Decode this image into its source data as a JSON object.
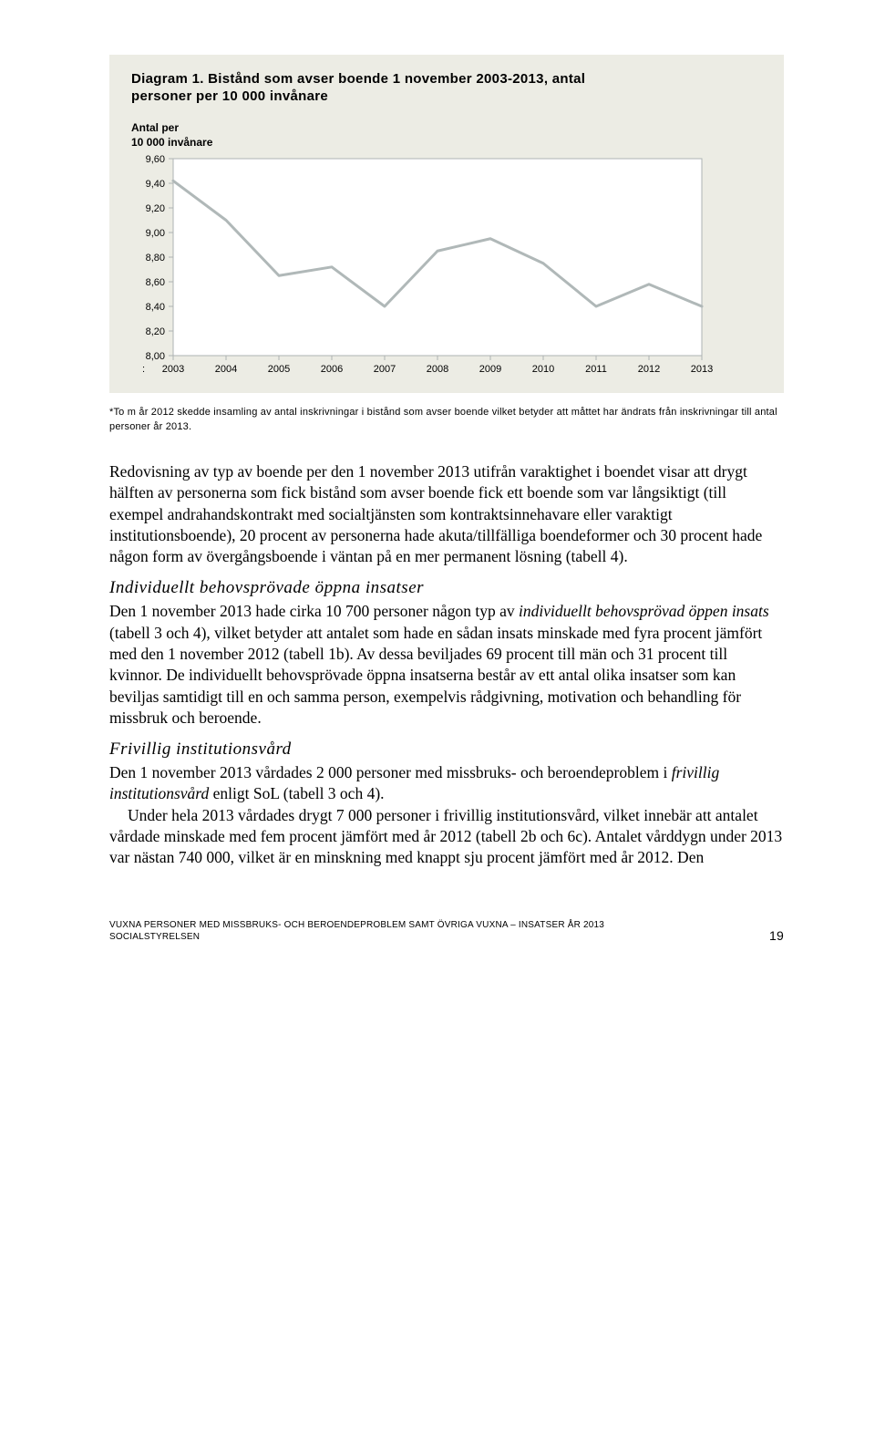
{
  "chart": {
    "title_line1": "Diagram 1. Bistånd som avser boende 1 november 2003-2013, antal",
    "title_line2": "personer per 10 000 invånare",
    "y_axis_label_line1": "Antal per",
    "y_axis_label_line2": "10 000 invånare",
    "type": "line",
    "background_color": "#ecece4",
    "plot_background_color": "#ffffff",
    "line_color": "#b0b8b8",
    "line_width": 3,
    "axis_color": "#aeb3b3",
    "tick_color": "#aeb3b3",
    "tick_label_color": "#000000",
    "tick_fontsize": 11,
    "title_fontsize": 15,
    "xlim": [
      2003,
      2013
    ],
    "ylim": [
      8.0,
      9.6
    ],
    "ytick_step": 0.2,
    "y_ticks": [
      "8,00",
      "8,20",
      "8,40",
      "8,60",
      "8,80",
      "9,00",
      "9,20",
      "9,40",
      "9,60"
    ],
    "x_ticks": [
      "2003",
      "2004",
      "2005",
      "2006",
      "2007",
      "2008",
      "2009",
      "2010",
      "2011",
      "2012",
      "2013"
    ],
    "values": [
      9.42,
      9.1,
      8.65,
      8.72,
      8.4,
      8.85,
      8.95,
      8.75,
      8.4,
      8.58,
      8.4
    ],
    "colon": ":",
    "footnote": "*To m år 2012 skedde insamling av antal inskrivningar i bistånd som avser boende vilket betyder att måttet har ändrats från inskrivningar till antal personer år 2013."
  },
  "paragraphs": {
    "p1": "Redovisning av typ av boende per den 1 november 2013 utifrån varaktighet i boendet visar att drygt hälften av personerna som fick bistånd som avser boende fick ett boende som var långsiktigt (till exempel andrahandskontrakt med socialtjänsten som kontraktsinnehavare eller varaktigt institutionsboende), 20 procent av personerna hade akuta/tillfälliga boendeformer och 30 procent hade någon form av övergångsboende i väntan på en mer permanent lösning (tabell 4)."
  },
  "section2": {
    "heading": "Individuellt behovsprövade öppna insatser",
    "p_a": "Den 1 november 2013 hade cirka 10 700 personer någon typ av ",
    "p_a_em": "individuellt behovsprövad öppen insats",
    "p_a_tail": " (tabell 3 och 4), vilket betyder att antalet som hade en sådan insats minskade med fyra procent jämfört med den 1 november 2012 (tabell 1b).  Av dessa beviljades 69 procent till män och 31 procent till kvinnor. De individuellt behovsprövade öppna insatserna består av ett antal olika insatser som kan beviljas samtidigt till en och samma person, exempelvis rådgivning, motivation och behandling för missbruk och beroende."
  },
  "section3": {
    "heading": "Frivillig institutionsvård",
    "p_a": "Den 1 november 2013 vårdades 2 000 personer med missbruks- och beroendeproblem i ",
    "p_a_em": "frivillig institutionsvård",
    "p_a_tail": " enligt SoL (tabell 3 och 4).",
    "p_b": "Under hela 2013 vårdades drygt 7 000 personer i frivillig institutionsvård, vilket innebär att antalet vårdade minskade med fem procent jämfört med år 2012 (tabell 2b och 6c). Antalet vårddygn under 2013 var nästan 740 000, vilket är en minskning med knappt sju procent jämfört med år 2012. Den"
  },
  "footer": {
    "line1": "VUXNA PERSONER MED MISSBRUKS- OCH BEROENDEPROBLEM SAMT ÖVRIGA VUXNA – INSATSER ÅR 2013",
    "line2": "SOCIALSTYRELSEN",
    "page_number": "19"
  }
}
